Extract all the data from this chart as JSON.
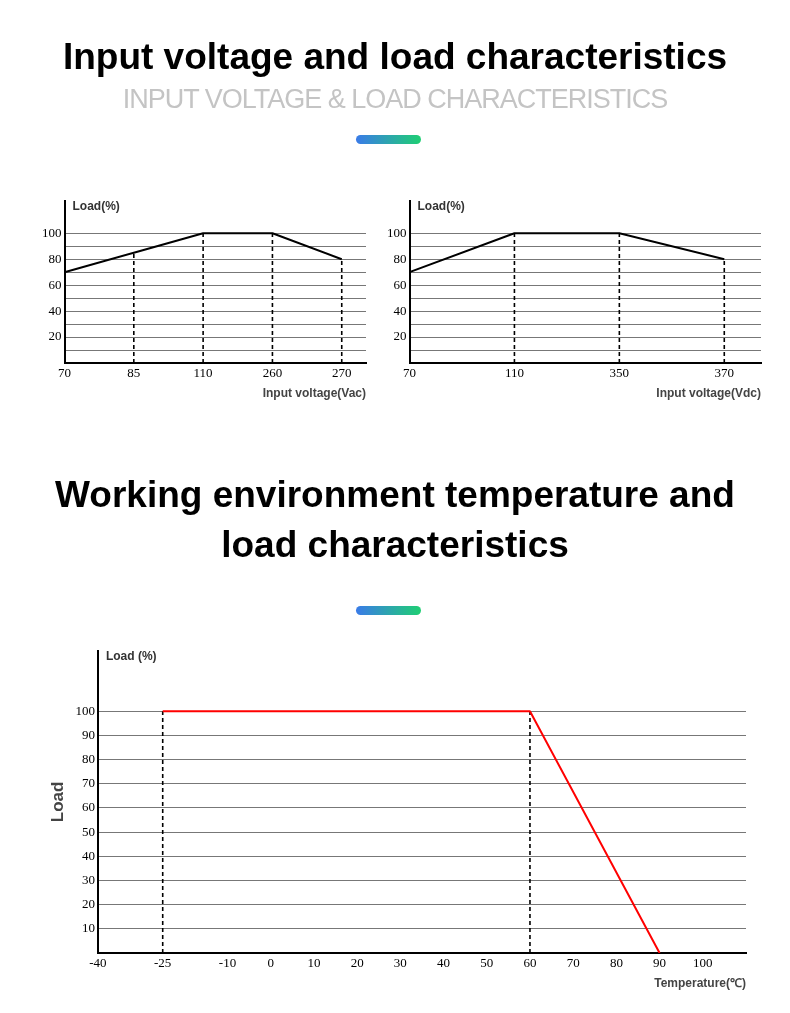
{
  "chart_data": [
    {
      "type": "other",
      "title": "Input voltage and load characteristics",
      "subtitle": "INPUT VOLTAGE & LOAD CHARACTERISTICS"
    },
    {
      "type": "line",
      "categories": [
        "70",
        "85",
        "110",
        "260",
        "270"
      ],
      "values": [
        70,
        85,
        100,
        100,
        80
      ],
      "color": "#000000",
      "ylim": [
        0,
        125
      ],
      "yticks": [
        {
          "value": 10,
          "label": null
        },
        20,
        {
          "value": 30,
          "label": null
        },
        40,
        {
          "value": 50,
          "label": null
        },
        60,
        {
          "value": 70,
          "label": null
        },
        80,
        {
          "value": 90,
          "label": null
        },
        100
      ],
      "grid": "y",
      "marker": "none",
      "xlabel": "Input voltage(Vac)",
      "annotations": [
        "Load(%)"
      ],
      "ref_lines": [
        {
          "axis": "x",
          "value": "85",
          "line_style": "dashed",
          "color": "#000000"
        },
        {
          "axis": "x",
          "value": "110",
          "line_style": "dashed",
          "color": "#000000"
        },
        {
          "axis": "x",
          "value": "260",
          "line_style": "dashed",
          "color": "#000000"
        },
        {
          "axis": "x",
          "value": "270",
          "line_style": "dashed",
          "color": "#000000"
        }
      ]
    },
    {
      "type": "line",
      "categories": [
        "70",
        "110",
        "350",
        "370"
      ],
      "values": [
        70,
        100,
        100,
        80
      ],
      "color": "#000000",
      "ylim": [
        0,
        125
      ],
      "yticks": [
        {
          "value": 10,
          "label": null
        },
        20,
        {
          "value": 30,
          "label": null
        },
        40,
        {
          "value": 50,
          "label": null
        },
        60,
        {
          "value": 70,
          "label": null
        },
        80,
        {
          "value": 90,
          "label": null
        },
        100
      ],
      "grid": "y",
      "marker": "none",
      "xlabel": "Input voltage(Vdc)",
      "annotations": [
        "Load(%)"
      ],
      "ref_lines": [
        {
          "axis": "x",
          "value": "110",
          "line_style": "dashed",
          "color": "#000000"
        },
        {
          "axis": "x",
          "value": "350",
          "line_style": "dashed",
          "color": "#000000"
        },
        {
          "axis": "x",
          "value": "370",
          "line_style": "dashed",
          "color": "#000000"
        }
      ]
    },
    {
      "type": "other",
      "title": "Working environment temperature and load characteristics"
    },
    {
      "type": "line",
      "x": [
        -25,
        60,
        90
      ],
      "values": [
        100,
        100,
        0
      ],
      "color": "#ff0000",
      "xlim": [
        -40,
        110
      ],
      "xticks": [
        -40,
        -25,
        -10,
        0,
        10,
        20,
        30,
        40,
        50,
        60,
        70,
        80,
        90,
        100
      ],
      "ylim": [
        0,
        125
      ],
      "yticks": [
        10,
        20,
        30,
        40,
        50,
        60,
        70,
        80,
        90,
        100
      ],
      "grid": "y",
      "marker": "none",
      "xlabel": "Temperature(℃)",
      "ylabel": "Load",
      "annotations": [
        "Load (%)"
      ],
      "ref_lines": [
        {
          "axis": "x",
          "value": -25,
          "line_style": "dashed",
          "color": "#000000"
        },
        {
          "axis": "x",
          "value": 60,
          "line_style": "dashed",
          "color": "#000000"
        }
      ]
    }
  ]
}
